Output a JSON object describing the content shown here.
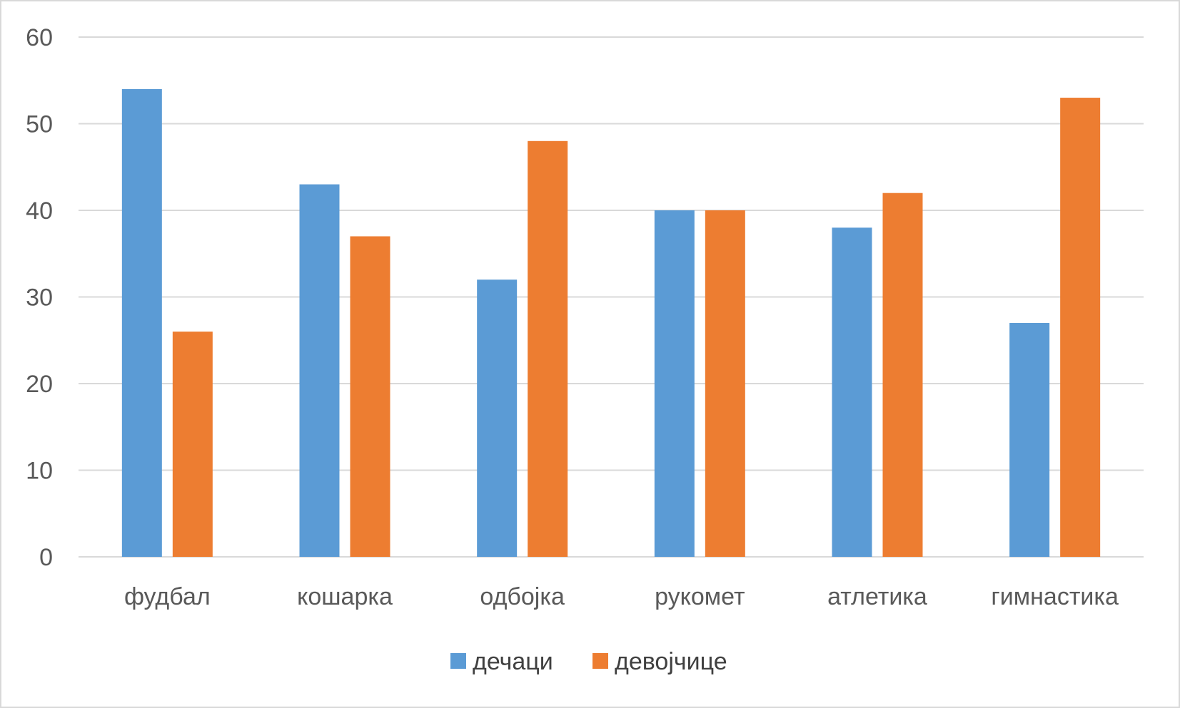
{
  "chart_data": {
    "type": "bar",
    "categories": [
      "фудбал",
      "кошарка",
      "одбојка",
      "рукомет",
      "атлетика",
      "гимнастика"
    ],
    "series": [
      {
        "name": "дечаци",
        "color": "#5b9bd5",
        "values": [
          54,
          43,
          32,
          40,
          38,
          27
        ]
      },
      {
        "name": "девојчице",
        "color": "#ed7d31",
        "values": [
          26,
          37,
          48,
          40,
          42,
          53
        ]
      }
    ],
    "y_ticks": [
      0,
      10,
      20,
      30,
      40,
      50,
      60
    ],
    "ylim": [
      0,
      60
    ],
    "grid": true,
    "gridline_color": "#d9d9d9",
    "legend_position": "bottom"
  }
}
